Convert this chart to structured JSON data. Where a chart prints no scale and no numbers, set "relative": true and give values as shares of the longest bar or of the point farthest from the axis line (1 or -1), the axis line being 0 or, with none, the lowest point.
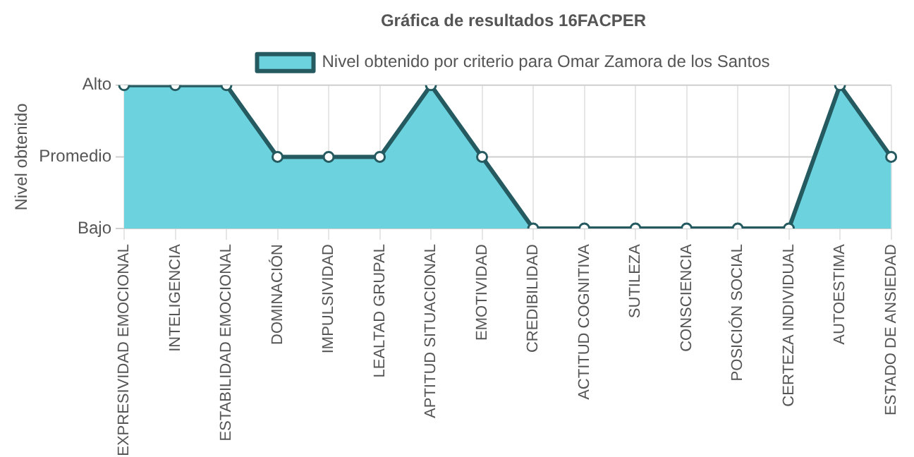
{
  "chart_data": {
    "type": "area",
    "title": "Gráfica de resultados 16FACPER",
    "annotations": [
      "Nivel obtenido"
    ],
    "relative": true,
    "categories": [
      "EXPRESIVIDAD EMOCIONAL",
      "INTELIGENCIA",
      "ESTABILIDAD EMOCIONAL",
      "DOMINACIÓN",
      "IMPULSIVIDAD",
      "LEALTAD GRUPAL",
      "APTITUD SITUACIONAL",
      "EMOTIVIDAD",
      "CREDIBILIDAD",
      "ACTITUD COGNITIVA",
      "SUTILEZA",
      "CONSCIENCIA",
      "POSICIÓN SOCIAL",
      "CERTEZA INDIVIDUAL",
      "AUTOESTIMA",
      "ESTADO DE ANSIEDAD"
    ],
    "series": [
      {
        "name": "Nivel obtenido por criterio para Omar Zamora de los Santos",
        "color": "#245a60",
        "values": [
          1,
          1,
          1,
          0.5,
          0.5,
          0.5,
          1,
          0.5,
          0,
          0,
          0,
          0,
          0,
          0,
          1,
          0.5
        ]
      }
    ],
    "ref_lines": [
      {
        "axis": "y",
        "value": 1,
        "label": "Alto",
        "color": "#cfcfcf"
      },
      {
        "axis": "y",
        "value": 0.5,
        "label": "Promedio",
        "color": "#cfcfcf"
      },
      {
        "axis": "y",
        "value": 0,
        "label": "Bajo",
        "color": "#cfcfcf"
      }
    ],
    "grid": "x",
    "legend": "top",
    "marker": "circle",
    "line_style": "solid"
  }
}
